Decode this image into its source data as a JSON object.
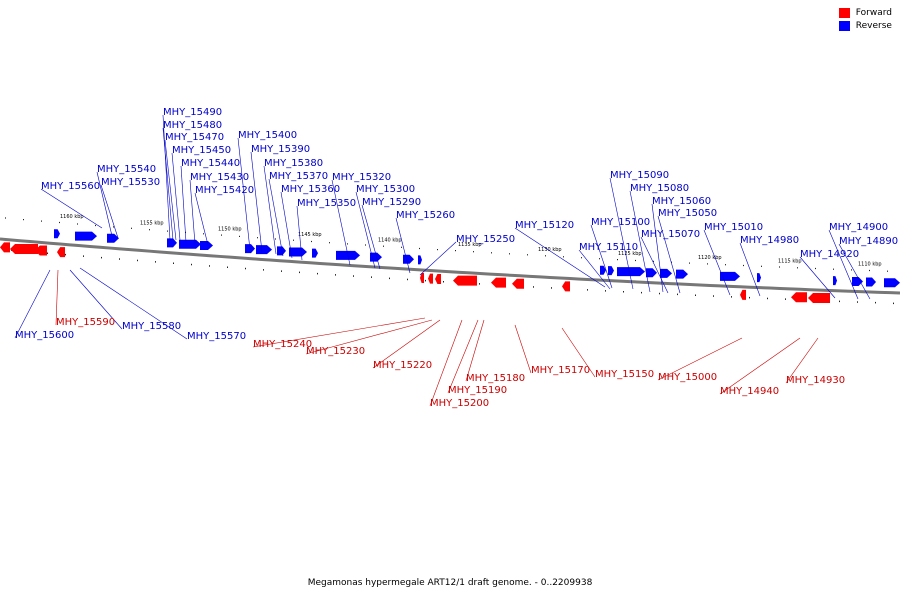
{
  "colors": {
    "forward": "#ff0000",
    "reverse": "#0000ff",
    "forward_label": "#cc0000",
    "reverse_label": "#0000cc"
  },
  "legend": {
    "forward": "Forward",
    "reverse": "Reverse"
  },
  "caption": "Megamonas hypermegale ART12/1 draft genome. - 0..2209938",
  "ticks": [
    "1160 kbp",
    "1155 kbp",
    "1150 kbp",
    "1145 kbp",
    "1140 kbp",
    "1135 kbp",
    "1130 kbp",
    "1125 kbp",
    "1120 kbp",
    "1115 kbp",
    "1110 kbp"
  ],
  "genes_reverse": [
    "MHY_15490",
    "MHY_15480",
    "MHY_15470",
    "MHY_15450",
    "MHY_15440",
    "MHY_15430",
    "MHY_15420",
    "MHY_15400",
    "MHY_15390",
    "MHY_15380",
    "MHY_15370",
    "MHY_15360",
    "MHY_15350",
    "MHY_15320",
    "MHY_15300",
    "MHY_15290",
    "MHY_15260",
    "MHY_15540",
    "MHY_15530",
    "MHY_15560",
    "MHY_15250",
    "MHY_15120",
    "MHY_15100",
    "MHY_15110",
    "MHY_15090",
    "MHY_15080",
    "MHY_15060",
    "MHY_15050",
    "MHY_15070",
    "MHY_15010",
    "MHY_14980",
    "MHY_14920",
    "MHY_14900",
    "MHY_14890",
    "MHY_15600",
    "MHY_15580",
    "MHY_15570"
  ],
  "genes_forward": [
    "MHY_15590",
    "MHY_15240",
    "MHY_15230",
    "MHY_15220",
    "MHY_15180",
    "MHY_15190",
    "MHY_15200",
    "MHY_15170",
    "MHY_15150",
    "MHY_15000",
    "MHY_14940",
    "MHY_14930"
  ]
}
